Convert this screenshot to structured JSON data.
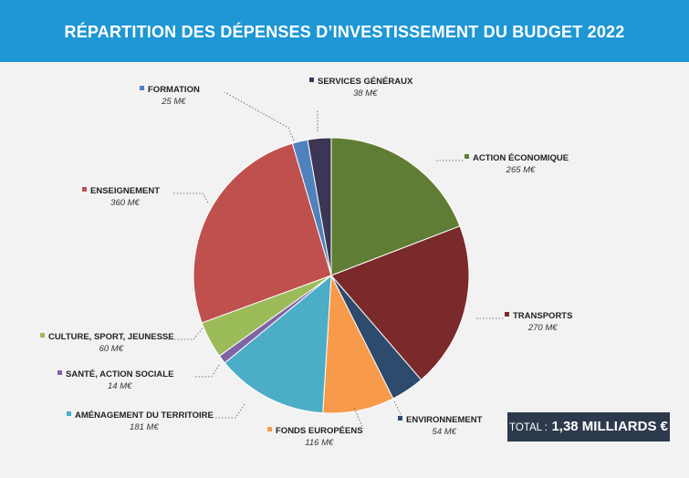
{
  "header": {
    "title": "RÉPARTITION DES DÉPENSES D’INVESTISSEMENT DU BUDGET 2022",
    "background": "#1f97d4"
  },
  "total": {
    "label": "TOTAL :",
    "value": "1,38 MILLIARDS €"
  },
  "chart_data": {
    "type": "pie",
    "title": "RÉPARTITION DES DÉPENSES D’INVESTISSEMENT DU BUDGET 2022",
    "unit": "M€",
    "slices": [
      {
        "label": "ACTION ÉCONOMIQUE",
        "value": 265,
        "value_text": "265 M€",
        "color": "#5f7d34"
      },
      {
        "label": "TRANSPORTS",
        "value": 270,
        "value_text": "270 M€",
        "color": "#7a2a2b"
      },
      {
        "label": "ENVIRONNEMENT",
        "value": 54,
        "value_text": "54 M€",
        "color": "#2e4b6e"
      },
      {
        "label": "FONDS EUROPÉENS",
        "value": 116,
        "value_text": "116 M€",
        "color": "#f79a4a"
      },
      {
        "label": "AMÉNAGEMENT DU TERRITOIRE",
        "value": 181,
        "value_text": "181 M€",
        "color": "#4cadc7"
      },
      {
        "label": "SANTÉ, ACTION SOCIALE",
        "value": 14,
        "value_text": "14 M€",
        "color": "#8063a4"
      },
      {
        "label": "CULTURE, SPORT, JEUNESSE",
        "value": 60,
        "value_text": "60 M€",
        "color": "#9bbb59"
      },
      {
        "label": "ENSEIGNEMENT",
        "value": 360,
        "value_text": "360 M€",
        "color": "#c0504d"
      },
      {
        "label": "FORMATION",
        "value": 25,
        "value_text": "25 M€",
        "color": "#4f81bd"
      },
      {
        "label": "SERVICES GÉNÉRAUX",
        "value": 38,
        "value_text": "38 M€",
        "color": "#3d3554"
      }
    ]
  }
}
